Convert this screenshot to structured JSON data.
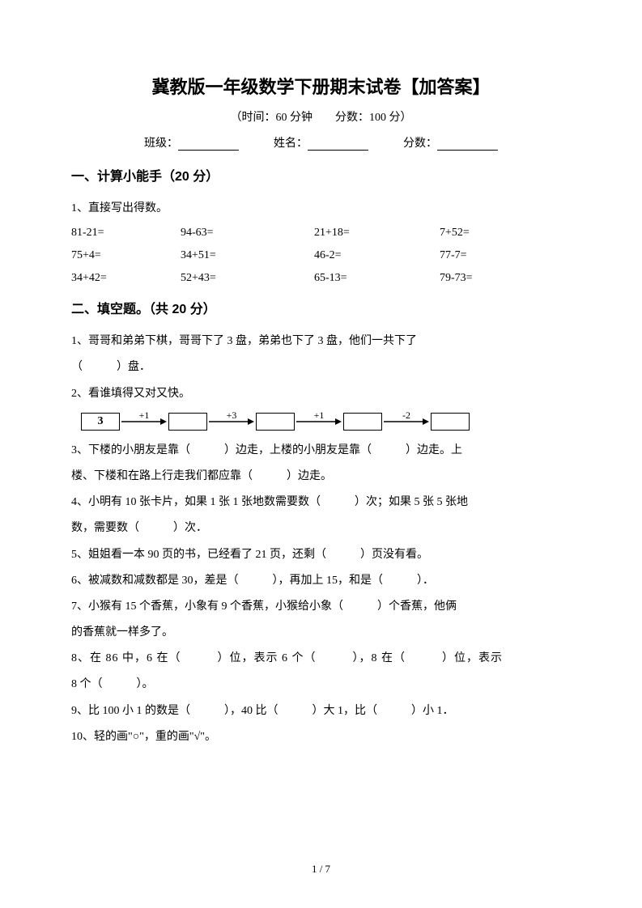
{
  "title": "冀教版一年级数学下册期末试卷【加答案】",
  "subtitle": "（时间：60 分钟　　分数：100 分）",
  "info": {
    "class_label": "班级：",
    "name_label": "姓名：",
    "score_label": "分数："
  },
  "section1": {
    "header": "一、计算小能手（20 分）",
    "q1_text": "1、直接写出得数。",
    "rows": [
      [
        "81-21=",
        "94-63=",
        "21+18=",
        "7+52="
      ],
      [
        "75+4=",
        "34+51=",
        "46-2=",
        "77-7="
      ],
      [
        "34+42=",
        "52+43=",
        "65-13=",
        "79-73="
      ]
    ]
  },
  "section2": {
    "header": "二、填空题。（共 20 分）",
    "q1_line1": "1、哥哥和弟弟下棋，哥哥下了 3 盘，弟弟也下了 3 盘，他们一共下了",
    "q1_line2": "（　　　）盘．",
    "q2": "2、看谁填得又对又快。",
    "flow": {
      "start": "3",
      "ops": [
        "+1",
        "+3",
        "+1",
        "-2"
      ]
    },
    "q3_line1": "3、下楼的小朋友是靠（　　　）边走，上楼的小朋友是靠（　　　）边走。上",
    "q3_line2": "楼、下楼和在路上行走我们都应靠（　　　）边走。",
    "q4_line1": "4、小明有 10 张卡片，如果 1 张 1 张地数需要数（　　　）次；如果 5 张 5 张地",
    "q4_line2": "数，需要数（　　　）次．",
    "q5": "5、姐姐看一本 90 页的书，已经看了 21 页，还剩（　　　）页没有看。",
    "q6": "6、被减数和减数都是 30，差是（　　　），再加上 15，和是（　　　）．",
    "q7_line1": "7、小猴有 15 个香蕉，小象有 9 个香蕉，小猴给小象（　　　）个香蕉，他俩",
    "q7_line2": "的香蕉就一样多了。",
    "q8_line1": "8、在 86 中，6 在（　　　）位，表示 6 个（　　　），8 在（　　　）位，表示",
    "q8_line2": "8 个（　　　）。",
    "q9": "9、比 100 小 1 的数是（　　　），40 比（　　　）大 1，比（　　　）小 1．",
    "q10": "10、轻的画\"○\"，重的画\"√\"。"
  },
  "footer": "1 / 7"
}
